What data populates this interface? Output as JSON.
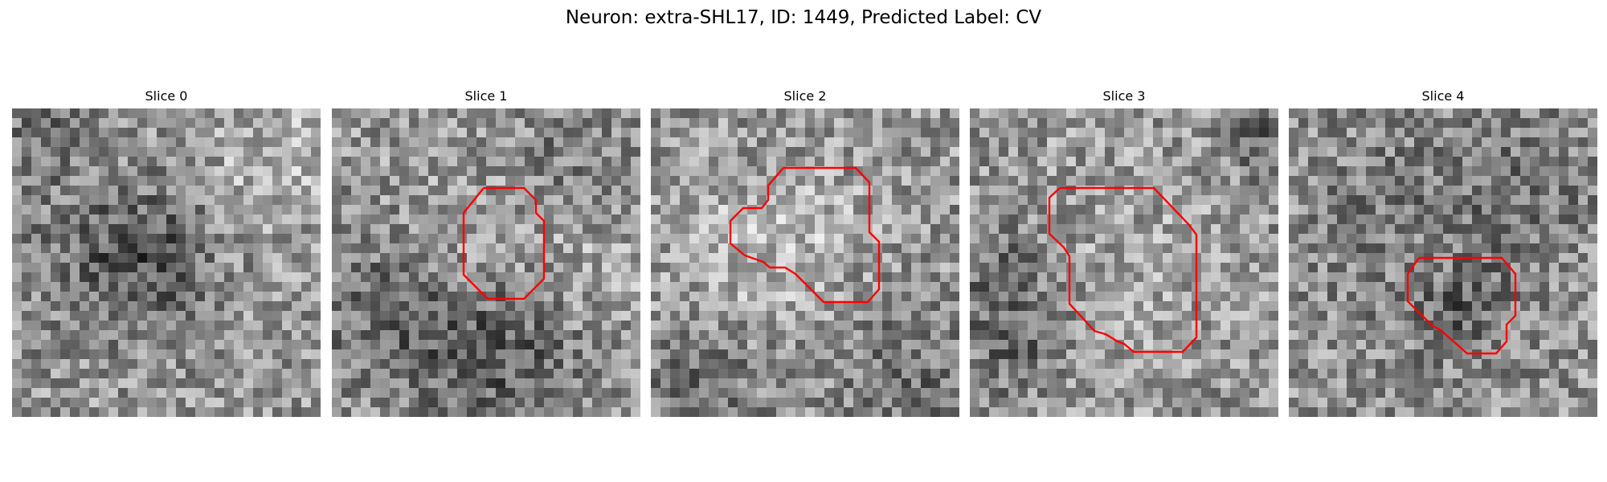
{
  "figure": {
    "title": "Neuron: extra-SHL17, ID: 1449, Predicted Label: CV",
    "outline_color": "#ff0000",
    "panels": [
      {
        "title": "Slice 0",
        "seed": 11,
        "has_outline": false
      },
      {
        "title": "Slice 1",
        "seed": 23,
        "has_outline": true
      },
      {
        "title": "Slice 2",
        "seed": 37,
        "has_outline": true
      },
      {
        "title": "Slice 3",
        "seed": 51,
        "has_outline": true
      },
      {
        "title": "Slice 4",
        "seed": 67,
        "has_outline": true
      }
    ]
  }
}
